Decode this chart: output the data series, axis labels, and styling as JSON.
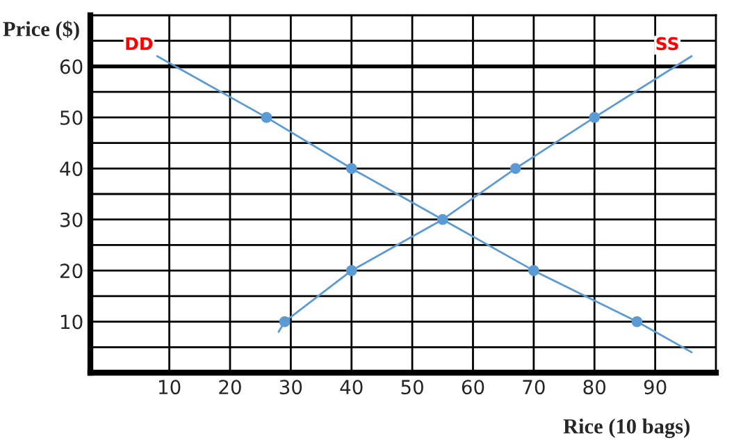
{
  "chart_data": {
    "type": "line",
    "xlabel": "Rice (10 bags)",
    "ylabel": "Price ($)",
    "xlim": [
      -3,
      100
    ],
    "ylim": [
      0,
      70
    ],
    "xticks": [
      10,
      20,
      30,
      40,
      50,
      60,
      70,
      80,
      90
    ],
    "yticks": [
      {
        "value": 5,
        "label": null
      },
      10,
      {
        "value": 15,
        "label": null
      },
      20,
      {
        "value": 25,
        "label": null
      },
      30,
      {
        "value": 35,
        "label": null
      },
      40,
      {
        "value": 45,
        "label": null
      },
      50,
      {
        "value": 55,
        "label": null
      },
      60,
      {
        "value": 65,
        "label": null
      }
    ],
    "grid": true,
    "line_style": "solid",
    "series": [
      {
        "name": "DD",
        "color": "#5b9bd5",
        "marker": "none",
        "x": [
          8,
          26,
          40,
          55,
          70,
          87,
          96
        ],
        "values": [
          62,
          50,
          40,
          30,
          20,
          10,
          4
        ]
      },
      {
        "name": "SS",
        "color": "#5b9bd5",
        "marker": "none",
        "x": [
          28,
          29,
          40,
          55,
          67,
          80,
          96
        ],
        "values": [
          8,
          10,
          20,
          30,
          40,
          50,
          62
        ]
      },
      {
        "type": "scatter",
        "color": "#5b9bd5",
        "marker": "circle",
        "x": [
          26,
          40,
          55,
          70,
          87
        ],
        "values": [
          50,
          40,
          30,
          20,
          10
        ]
      },
      {
        "type": "scatter",
        "color": "#5b9bd5",
        "marker": "circle",
        "x": [
          29,
          40,
          55,
          67,
          80
        ],
        "values": [
          10,
          20,
          null,
          40,
          50
        ]
      }
    ],
    "ref_lines": [
      {
        "axis": "y",
        "value": 60,
        "color": "#000000"
      }
    ]
  }
}
